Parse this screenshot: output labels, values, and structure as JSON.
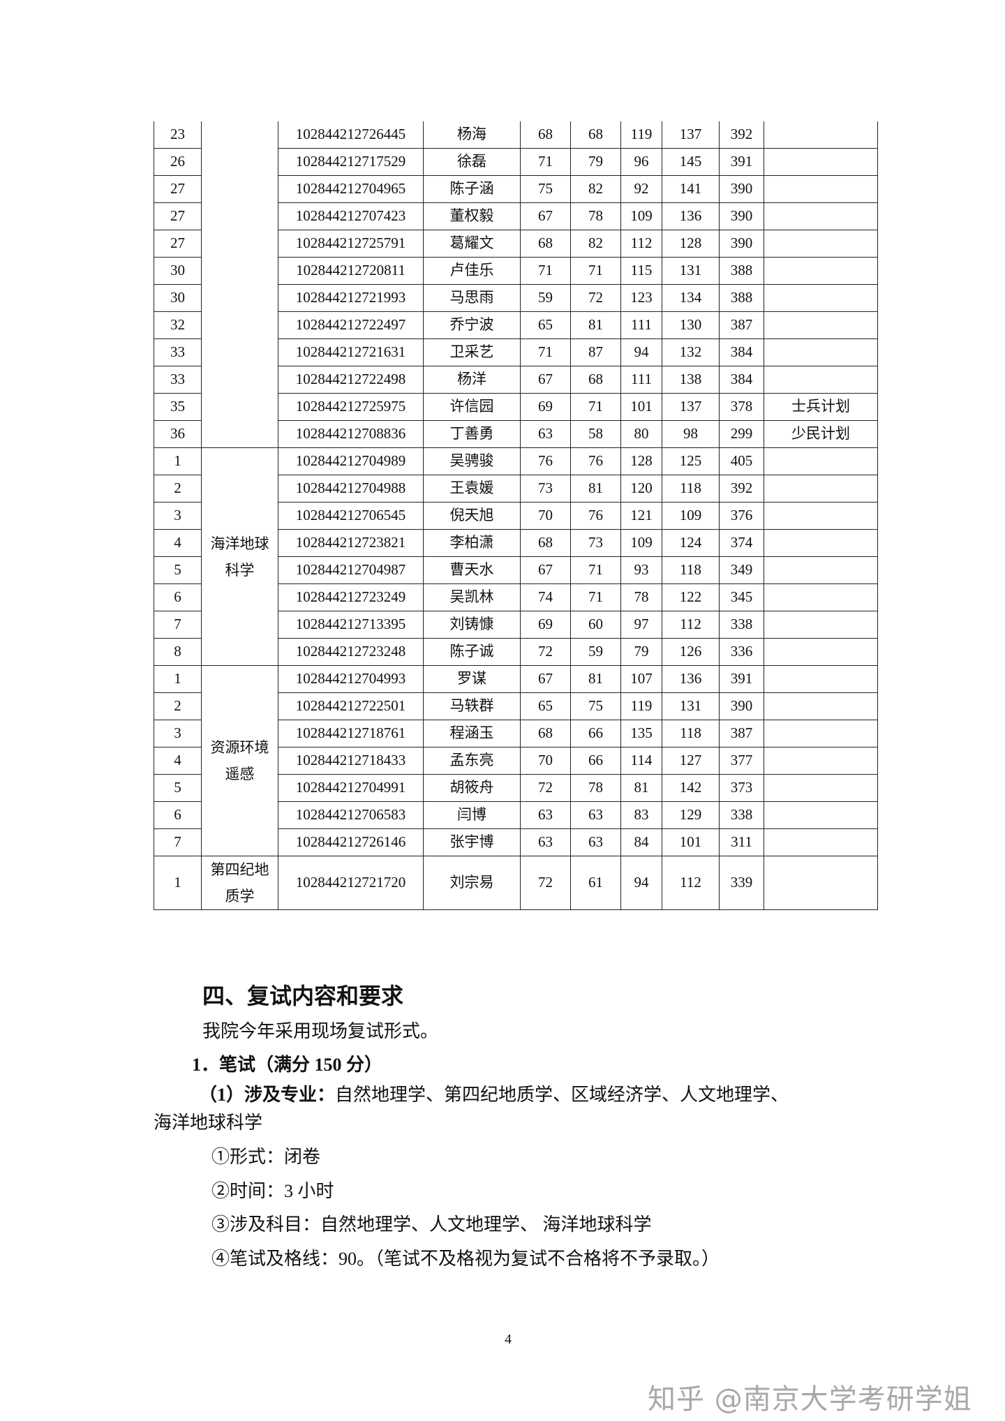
{
  "table": {
    "groups": [
      {
        "name": "",
        "rows": [
          [
            "23",
            "102844212726445",
            "杨海",
            "68",
            "68",
            "119",
            "137",
            "392",
            ""
          ],
          [
            "26",
            "102844212717529",
            "徐磊",
            "71",
            "79",
            "96",
            "145",
            "391",
            ""
          ],
          [
            "27",
            "102844212704965",
            "陈子涵",
            "75",
            "82",
            "92",
            "141",
            "390",
            ""
          ],
          [
            "27",
            "102844212707423",
            "董权毅",
            "67",
            "78",
            "109",
            "136",
            "390",
            ""
          ],
          [
            "27",
            "102844212725791",
            "葛耀文",
            "68",
            "82",
            "112",
            "128",
            "390",
            ""
          ],
          [
            "30",
            "102844212720811",
            "卢佳乐",
            "71",
            "71",
            "115",
            "131",
            "388",
            ""
          ],
          [
            "30",
            "102844212721993",
            "马思雨",
            "59",
            "72",
            "123",
            "134",
            "388",
            ""
          ],
          [
            "32",
            "102844212722497",
            "乔宁波",
            "65",
            "81",
            "111",
            "130",
            "387",
            ""
          ],
          [
            "33",
            "102844212721631",
            "卫采艺",
            "71",
            "87",
            "94",
            "132",
            "384",
            ""
          ],
          [
            "33",
            "102844212722498",
            "杨洋",
            "67",
            "68",
            "111",
            "138",
            "384",
            ""
          ],
          [
            "35",
            "102844212725975",
            "许信园",
            "69",
            "71",
            "101",
            "137",
            "378",
            "士兵计划"
          ],
          [
            "36",
            "102844212708836",
            "丁善勇",
            "63",
            "58",
            "80",
            "98",
            "299",
            "少民计划"
          ]
        ]
      },
      {
        "name": "海洋地球科学",
        "rows": [
          [
            "1",
            "102844212704989",
            "吴骋骏",
            "76",
            "76",
            "128",
            "125",
            "405",
            ""
          ],
          [
            "2",
            "102844212704988",
            "王袁媛",
            "73",
            "81",
            "120",
            "118",
            "392",
            ""
          ],
          [
            "3",
            "102844212706545",
            "倪天旭",
            "70",
            "76",
            "121",
            "109",
            "376",
            ""
          ],
          [
            "4",
            "102844212723821",
            "李柏潇",
            "68",
            "73",
            "109",
            "124",
            "374",
            ""
          ],
          [
            "5",
            "102844212704987",
            "曹天水",
            "67",
            "71",
            "93",
            "118",
            "349",
            ""
          ],
          [
            "6",
            "102844212723249",
            "吴凯林",
            "74",
            "71",
            "78",
            "122",
            "345",
            ""
          ],
          [
            "7",
            "102844212713395",
            "刘铸慷",
            "69",
            "60",
            "97",
            "112",
            "338",
            ""
          ],
          [
            "8",
            "102844212723248",
            "陈子诚",
            "72",
            "59",
            "79",
            "126",
            "336",
            ""
          ]
        ]
      },
      {
        "name": "资源环境遥感",
        "rows": [
          [
            "1",
            "102844212704993",
            "罗谋",
            "67",
            "81",
            "107",
            "136",
            "391",
            ""
          ],
          [
            "2",
            "102844212722501",
            "马轶群",
            "65",
            "75",
            "119",
            "131",
            "390",
            ""
          ],
          [
            "3",
            "102844212718761",
            "程涵玉",
            "68",
            "66",
            "135",
            "118",
            "387",
            ""
          ],
          [
            "4",
            "102844212718433",
            "孟东亮",
            "70",
            "66",
            "114",
            "127",
            "377",
            ""
          ],
          [
            "5",
            "102844212704991",
            "胡筱舟",
            "72",
            "78",
            "81",
            "142",
            "373",
            ""
          ],
          [
            "6",
            "102844212706583",
            "闫博",
            "63",
            "63",
            "83",
            "129",
            "338",
            ""
          ],
          [
            "7",
            "102844212726146",
            "张宇博",
            "63",
            "63",
            "84",
            "101",
            "311",
            ""
          ]
        ]
      },
      {
        "name": "第四纪地质学",
        "rows": [
          [
            "1",
            "102844212721720",
            "刘宗易",
            "72",
            "61",
            "94",
            "112",
            "339",
            ""
          ]
        ]
      }
    ]
  },
  "section": {
    "heading": "四、复试内容和要求",
    "intro": "我院今年采用现场复试形式。",
    "item1_title": "1．笔试（满分 150 分）",
    "majors_label": "（1）涉及专业：",
    "majors_line1": "自然地理学、第四纪地质学、区域经济学、人文地理学、",
    "majors_line2": "海洋地球科学",
    "points": [
      "①形式：闭卷",
      "②时间：3 小时",
      "③涉及科目：自然地理学、人文地理学、 海洋地球科学",
      "④笔试及格线：90。（笔试不及格视为复试不合格将不予录取。）"
    ]
  },
  "page_number": "4",
  "watermark": "知乎 @南京大学考研学姐"
}
